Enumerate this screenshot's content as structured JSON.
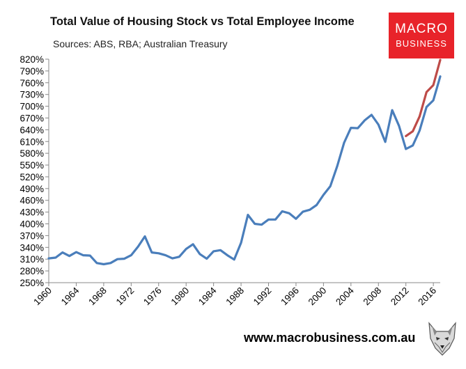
{
  "chart_data": {
    "type": "line",
    "title": "Total Value of Housing Stock vs Total Employee Income",
    "subtitle": "Sources: ABS, RBA; Australian Treasury",
    "xlabel": "",
    "ylabel": "",
    "xlim": [
      1960,
      2017
    ],
    "ylim": [
      250,
      820
    ],
    "y_ticks": [
      250,
      280,
      310,
      340,
      370,
      400,
      430,
      460,
      490,
      520,
      550,
      580,
      610,
      640,
      670,
      700,
      730,
      760,
      790,
      820
    ],
    "y_tick_labels": [
      "250%",
      "280%",
      "310%",
      "340%",
      "370%",
      "400%",
      "430%",
      "460%",
      "490%",
      "520%",
      "550%",
      "580%",
      "610%",
      "640%",
      "670%",
      "700%",
      "730%",
      "760%",
      "790%",
      "820%"
    ],
    "x_ticks": [
      1960,
      1964,
      1968,
      1972,
      1976,
      1980,
      1984,
      1988,
      1992,
      1996,
      2000,
      2004,
      2008,
      2012,
      2016
    ],
    "x_tick_labels": [
      "1960",
      "1964",
      "1968",
      "1972",
      "1976",
      "1980",
      "1984",
      "1988",
      "1992",
      "1996",
      "2000",
      "2004",
      "2008",
      "2012",
      "2016"
    ],
    "grid": false,
    "series": [
      {
        "color": "#4a7ebb",
        "x": [
          1960,
          1961,
          1962,
          1963,
          1964,
          1965,
          1966,
          1967,
          1968,
          1969,
          1970,
          1971,
          1972,
          1973,
          1974,
          1975,
          1976,
          1977,
          1978,
          1979,
          1980,
          1981,
          1982,
          1983,
          1984,
          1985,
          1986,
          1987,
          1988,
          1989,
          1990,
          1991,
          1992,
          1993,
          1994,
          1995,
          1996,
          1997,
          1998,
          1999,
          2000,
          2001,
          2002,
          2003,
          2004,
          2005,
          2006,
          2007,
          2008,
          2009,
          2010,
          2011,
          2012,
          2013,
          2014,
          2015,
          2016,
          2017
        ],
        "y": [
          312,
          314,
          327,
          318,
          328,
          320,
          319,
          300,
          297,
          300,
          310,
          311,
          320,
          342,
          368,
          327,
          325,
          320,
          312,
          316,
          336,
          348,
          323,
          311,
          330,
          333,
          320,
          309,
          352,
          423,
          400,
          398,
          411,
          411,
          432,
          427,
          413,
          431,
          436,
          448,
          474,
          496,
          547,
          607,
          645,
          644,
          664,
          678,
          653,
          609,
          690,
          650,
          591,
          600,
          638,
          698,
          715,
          776
        ]
      },
      {
        "color": "#be4b48",
        "x": [
          2012,
          2013,
          2014,
          2015,
          2016,
          2017
        ],
        "y": [
          624,
          636,
          674,
          736,
          754,
          818
        ]
      }
    ]
  },
  "watermark": {
    "brand_line1": "MACRO",
    "brand_line2": "BUSINESS",
    "website": "www.macrobusiness.com.au",
    "mascot_icon": "wolf-head-icon",
    "brand_color": "#e8232a"
  }
}
